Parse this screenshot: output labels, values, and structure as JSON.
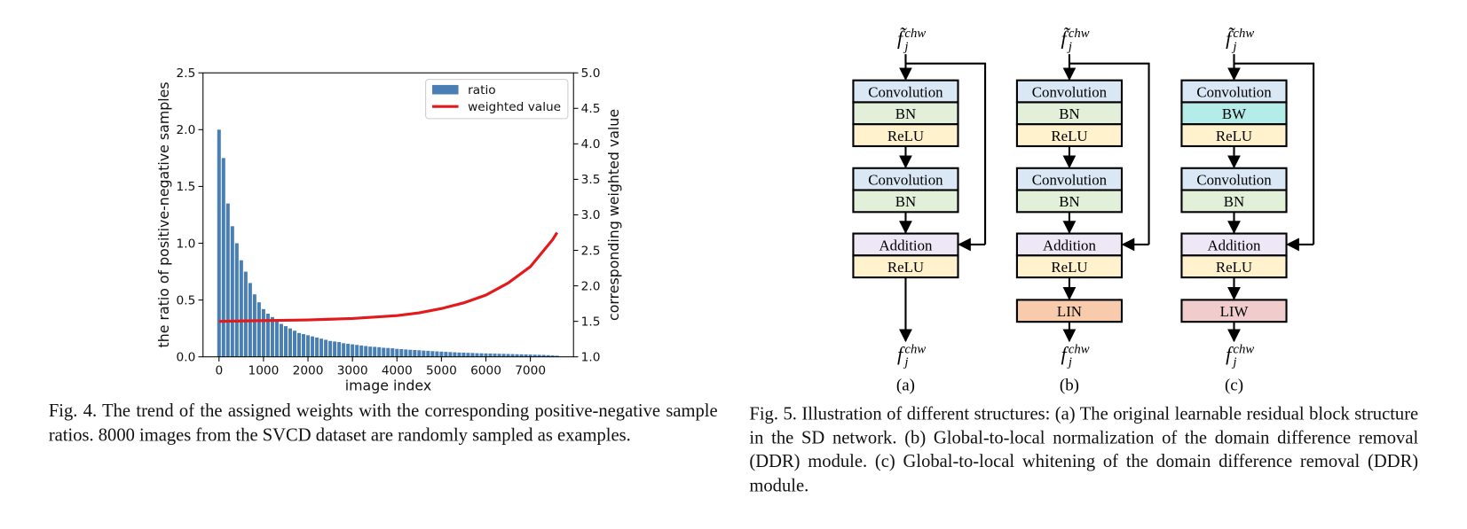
{
  "chart_data": {
    "type": "bar",
    "xlabel": "image index",
    "ylabel": "the ratio of positive-negative samples",
    "y2label": "corresponding weighted value",
    "x": [
      0,
      100,
      200,
      300,
      400,
      500,
      600,
      700,
      800,
      900,
      1000,
      1100,
      1200,
      1300,
      1400,
      1500,
      1600,
      1700,
      1800,
      1900,
      2000,
      2100,
      2200,
      2300,
      2400,
      2500,
      2600,
      2700,
      2800,
      2900,
      3000,
      3100,
      3200,
      3300,
      3400,
      3500,
      3600,
      3700,
      3800,
      3900,
      4000,
      4100,
      4200,
      4300,
      4400,
      4500,
      4600,
      4700,
      4800,
      4900,
      5000,
      5100,
      5200,
      5300,
      5400,
      5500,
      5600,
      5700,
      5800,
      5900,
      6000,
      6100,
      6200,
      6300,
      6400,
      6500,
      6600,
      6700,
      6800,
      6900,
      7000,
      7100,
      7200,
      7300,
      7400,
      7500,
      7600
    ],
    "series": [
      {
        "name": "ratio",
        "color": "#4a7fb5",
        "values": [
          2.0,
          1.75,
          1.35,
          1.15,
          1.0,
          0.85,
          0.75,
          0.65,
          0.55,
          0.48,
          0.42,
          0.38,
          0.35,
          0.32,
          0.29,
          0.27,
          0.25,
          0.23,
          0.21,
          0.2,
          0.19,
          0.18,
          0.17,
          0.16,
          0.15,
          0.14,
          0.135,
          0.13,
          0.12,
          0.115,
          0.11,
          0.105,
          0.1,
          0.095,
          0.09,
          0.088,
          0.085,
          0.08,
          0.078,
          0.075,
          0.07,
          0.068,
          0.065,
          0.062,
          0.06,
          0.058,
          0.055,
          0.053,
          0.05,
          0.048,
          0.046,
          0.044,
          0.042,
          0.04,
          0.038,
          0.037,
          0.035,
          0.034,
          0.032,
          0.031,
          0.03,
          0.029,
          0.028,
          0.027,
          0.026,
          0.025,
          0.024,
          0.023,
          0.022,
          0.021,
          0.02,
          0.019,
          0.018,
          0.017,
          0.015,
          0.012,
          0.01
        ]
      },
      {
        "name": "weighted value",
        "color": "#e31a1c",
        "type": "line",
        "axis": "y2",
        "x": [
          0,
          500,
          1000,
          1500,
          2000,
          2500,
          3000,
          3500,
          4000,
          4500,
          5000,
          5500,
          6000,
          6500,
          7000,
          7500,
          7600
        ],
        "values": [
          1.5,
          1.505,
          1.51,
          1.515,
          1.52,
          1.53,
          1.54,
          1.56,
          1.58,
          1.62,
          1.68,
          1.76,
          1.87,
          2.04,
          2.27,
          2.65,
          2.75
        ]
      }
    ],
    "xlim": [
      -360,
      7970
    ],
    "xticks": [
      0,
      1000,
      2000,
      3000,
      4000,
      5000,
      6000,
      7000
    ],
    "ylim": [
      0,
      2.5
    ],
    "yticks": [
      {
        "value": 0,
        "label": "0.0"
      },
      0.5,
      {
        "value": 1,
        "label": "1.0"
      },
      1.5,
      {
        "value": 2,
        "label": "2.0"
      },
      2.5
    ],
    "y2lim": [
      1,
      5
    ],
    "y2ticks": [
      {
        "value": 1,
        "label": "1.0"
      },
      1.5,
      {
        "value": 2,
        "label": "2.0"
      },
      2.5,
      {
        "value": 3,
        "label": "3.0"
      },
      3.5,
      {
        "value": 4,
        "label": "4.0"
      },
      4.5,
      {
        "value": 5,
        "label": "5.0"
      }
    ],
    "legend": "upper right"
  },
  "fig4_caption": "Fig. 4.  The trend of the assigned weights with the corresponding positive-negative sample ratios. 8000 images from the SVCD dataset are randomly sampled as examples.",
  "fig5_caption": "Fig. 5.  Illustration of different structures: (a) The original learnable residual block structure in the SD network. (b) Global-to-local normalization of the domain difference removal (DDR) module. (c) Global-to-local whitening of the domain difference removal (DDR) module.",
  "diagram": {
    "columns": [
      {
        "input": {
          "symbol": "f̃",
          "sub": "j",
          "sup": "chw"
        },
        "groups": [
          [
            {
              "label": "Convolution",
              "color": "#dae8f5"
            },
            {
              "label": "BN",
              "color": "#e2efd9"
            },
            {
              "label": "ReLU",
              "color": "#fff2cc"
            }
          ],
          [
            {
              "label": "Convolution",
              "color": "#dae8f5"
            },
            {
              "label": "BN",
              "color": "#e2efd9"
            }
          ],
          [
            {
              "label": "Addition",
              "color": "#ede7f6"
            },
            {
              "label": "ReLU",
              "color": "#fff2cc"
            }
          ]
        ],
        "output": {
          "symbol": "f",
          "sub": "j",
          "sup": "chw"
        },
        "label": "(a)"
      },
      {
        "input": {
          "symbol": "f̃",
          "sub": "j",
          "sup": "chw"
        },
        "groups": [
          [
            {
              "label": "Convolution",
              "color": "#dae8f5"
            },
            {
              "label": "BN",
              "color": "#e2efd9"
            },
            {
              "label": "ReLU",
              "color": "#fff2cc"
            }
          ],
          [
            {
              "label": "Convolution",
              "color": "#dae8f5"
            },
            {
              "label": "BN",
              "color": "#e2efd9"
            }
          ],
          [
            {
              "label": "Addition",
              "color": "#ede7f6"
            },
            {
              "label": "ReLU",
              "color": "#fff2cc"
            }
          ],
          [
            {
              "label": "LIN",
              "color": "#f8cbad"
            }
          ]
        ],
        "output": {
          "symbol": "f",
          "sub": "j",
          "sup": "chw"
        },
        "label": "(b)"
      },
      {
        "input": {
          "symbol": "f̃",
          "sub": "j",
          "sup": "chw"
        },
        "groups": [
          [
            {
              "label": "Convolution",
              "color": "#dae8f5"
            },
            {
              "label": "BW",
              "color": "#b3ece8"
            },
            {
              "label": "ReLU",
              "color": "#fff2cc"
            }
          ],
          [
            {
              "label": "Convolution",
              "color": "#dae8f5"
            },
            {
              "label": "BN",
              "color": "#e2efd9"
            }
          ],
          [
            {
              "label": "Addition",
              "color": "#ede7f6"
            },
            {
              "label": "ReLU",
              "color": "#fff2cc"
            }
          ],
          [
            {
              "label": "LIW",
              "color": "#f0cccc"
            }
          ]
        ],
        "output": {
          "symbol": "f",
          "sub": "j",
          "sup": "chw"
        },
        "label": "(c)"
      }
    ]
  }
}
